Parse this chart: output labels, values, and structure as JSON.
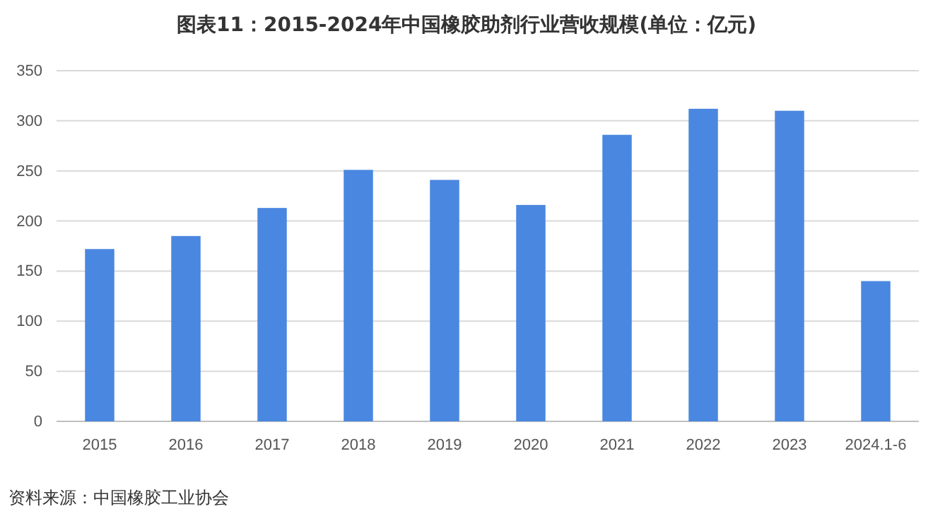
{
  "chart_data": {
    "type": "bar",
    "title": "图表11：2015-2024年中国橡胶助剂行业营收规模(单位：亿元)",
    "categories": [
      "2015",
      "2016",
      "2017",
      "2018",
      "2019",
      "2020",
      "2021",
      "2022",
      "2023",
      "2024.1-6"
    ],
    "values": [
      172,
      185,
      213,
      251,
      241,
      216,
      286,
      312,
      310,
      140
    ],
    "color": "#4a87e0",
    "ylim": [
      0,
      350
    ],
    "yticks": [
      0,
      50,
      100,
      150,
      200,
      250,
      300,
      350
    ],
    "grid": "y",
    "annotations": [
      "资料来源：中国橡胶工业协会"
    ]
  }
}
